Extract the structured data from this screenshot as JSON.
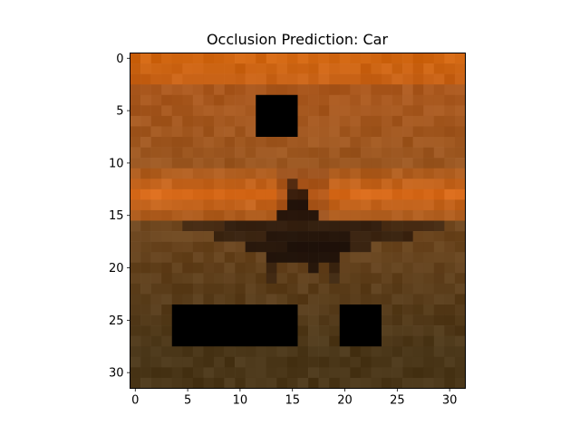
{
  "chart_data": {
    "type": "heatmap",
    "title": "Occlusion Prediction: Car",
    "xlabel": "",
    "ylabel": "",
    "grid": 32,
    "xlim": [
      -0.5,
      31.5
    ],
    "ylim": [
      31.5,
      -0.5
    ],
    "xticks": [
      0,
      5,
      10,
      15,
      20,
      25,
      30
    ],
    "yticks": [
      0,
      5,
      10,
      15,
      20,
      25,
      30
    ],
    "grid_lines": false,
    "legend": "none",
    "occluded_patches": [
      {
        "x0": 12,
        "x1": 15,
        "y0": 4,
        "y1": 7
      },
      {
        "x0": 4,
        "x1": 15,
        "y0": 24,
        "y1": 27
      },
      {
        "x0": 20,
        "x1": 23,
        "y0": 24,
        "y1": 27
      }
    ],
    "colors": {
      "sky_top": "#d06510",
      "sky_mid": "#9a5620",
      "glow": "#d86a1a",
      "ground": "#4a3618",
      "silhouette": "#1a0e08",
      "occluder": "#000000"
    }
  }
}
